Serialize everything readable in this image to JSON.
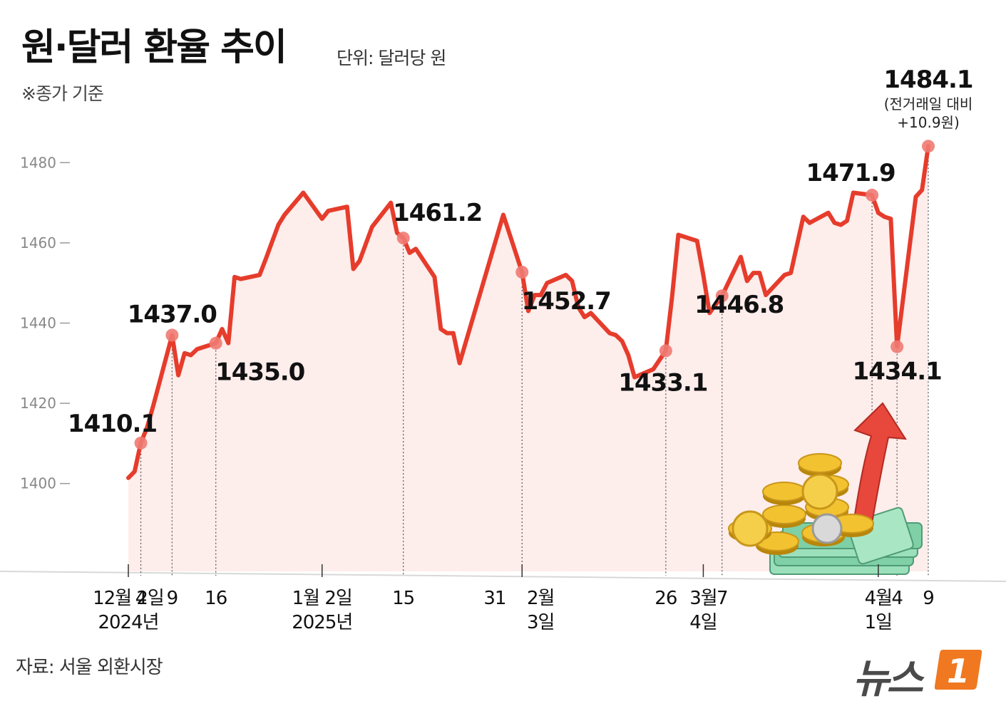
{
  "header": {
    "title": "원·달러 환율 추이",
    "unit": "단위: 달러당 원",
    "basis": "※종가 기준"
  },
  "footer": {
    "source": "자료: 서울 외환시장",
    "logo_text": "뉴스",
    "logo_mark": "1"
  },
  "colors": {
    "line": "#e63c2c",
    "marker": "#ef7a72",
    "area": "#fdeae8",
    "axis_text": "#888888",
    "label_text": "#111111",
    "logo": "#f07820"
  },
  "chart_data": {
    "type": "line",
    "ylim": [
      1390,
      1490
    ],
    "yticks": [
      1400,
      1420,
      1440,
      1460,
      1480
    ],
    "x_range": [
      "2024-12-02",
      "2025-04-09"
    ],
    "grid": false,
    "series": [
      {
        "values": [
          [
            "2024-12-02",
            1401.4
          ],
          [
            "2024-12-03",
            1403.0
          ],
          [
            "2024-12-04",
            1410.1
          ],
          [
            "2024-12-05",
            1414.0
          ],
          [
            "2024-12-06",
            1419.5
          ],
          [
            "2024-12-09",
            1437.0
          ],
          [
            "2024-12-10",
            1427.0
          ],
          [
            "2024-12-11",
            1432.5
          ],
          [
            "2024-12-12",
            1432.0
          ],
          [
            "2024-12-13",
            1433.5
          ],
          [
            "2024-12-16",
            1435.0
          ],
          [
            "2024-12-17",
            1438.5
          ],
          [
            "2024-12-18",
            1435.0
          ],
          [
            "2024-12-19",
            1451.5
          ],
          [
            "2024-12-20",
            1451.0
          ],
          [
            "2024-12-23",
            1452.0
          ],
          [
            "2024-12-24",
            1456.0
          ],
          [
            "2024-12-26",
            1464.5
          ],
          [
            "2024-12-27",
            1467.0
          ],
          [
            "2024-12-30",
            1472.5
          ],
          [
            "2025-01-02",
            1466.0
          ],
          [
            "2025-01-03",
            1468.0
          ],
          [
            "2025-01-06",
            1469.0
          ],
          [
            "2025-01-07",
            1453.5
          ],
          [
            "2025-01-08",
            1455.5
          ],
          [
            "2025-01-10",
            1464.0
          ],
          [
            "2025-01-13",
            1470.0
          ],
          [
            "2025-01-14",
            1462.5
          ],
          [
            "2025-01-15",
            1461.2
          ],
          [
            "2025-01-16",
            1457.5
          ],
          [
            "2025-01-17",
            1458.5
          ],
          [
            "2025-01-20",
            1451.5
          ],
          [
            "2025-01-21",
            1438.5
          ],
          [
            "2025-01-22",
            1437.5
          ],
          [
            "2025-01-23",
            1437.5
          ],
          [
            "2025-01-24",
            1430.0
          ],
          [
            "2025-01-31",
            1467.0
          ],
          [
            "2025-02-03",
            1452.7
          ],
          [
            "2025-02-04",
            1443.0
          ],
          [
            "2025-02-05",
            1447.0
          ],
          [
            "2025-02-06",
            1447.0
          ],
          [
            "2025-02-07",
            1450.0
          ],
          [
            "2025-02-10",
            1452.0
          ],
          [
            "2025-02-11",
            1450.5
          ],
          [
            "2025-02-12",
            1444.0
          ],
          [
            "2025-02-13",
            1441.5
          ],
          [
            "2025-02-14",
            1442.5
          ],
          [
            "2025-02-17",
            1437.5
          ],
          [
            "2025-02-18",
            1437.0
          ],
          [
            "2025-02-19",
            1435.5
          ],
          [
            "2025-02-20",
            1432.0
          ],
          [
            "2025-02-21",
            1426.5
          ],
          [
            "2025-02-24",
            1428.5
          ],
          [
            "2025-02-26",
            1433.1
          ],
          [
            "2025-02-27",
            1446.5
          ],
          [
            "2025-02-28",
            1462.0
          ],
          [
            "2025-03-03",
            1460.5
          ],
          [
            "2025-03-04",
            1452.0
          ],
          [
            "2025-03-05",
            1442.5
          ],
          [
            "2025-03-07",
            1446.8
          ],
          [
            "2025-03-10",
            1456.5
          ],
          [
            "2025-03-11",
            1450.5
          ],
          [
            "2025-03-12",
            1452.5
          ],
          [
            "2025-03-13",
            1452.5
          ],
          [
            "2025-03-14",
            1447.0
          ],
          [
            "2025-03-17",
            1452.0
          ],
          [
            "2025-03-18",
            1452.5
          ],
          [
            "2025-03-19",
            1459.5
          ],
          [
            "2025-03-20",
            1466.5
          ],
          [
            "2025-03-21",
            1465.0
          ],
          [
            "2025-03-24",
            1467.5
          ],
          [
            "2025-03-25",
            1465.0
          ],
          [
            "2025-03-26",
            1464.5
          ],
          [
            "2025-03-27",
            1465.5
          ],
          [
            "2025-03-28",
            1472.5
          ],
          [
            "2025-03-31",
            1471.9
          ],
          [
            "2025-04-01",
            1467.5
          ],
          [
            "2025-04-02",
            1466.5
          ],
          [
            "2025-04-03",
            1466.0
          ],
          [
            "2025-04-04",
            1434.1
          ],
          [
            "2025-04-07",
            1471.5
          ],
          [
            "2025-04-08",
            1473.2
          ],
          [
            "2025-04-09",
            1484.1
          ]
        ]
      }
    ],
    "highlights": [
      {
        "date": "2024-12-04",
        "value": 1410.1,
        "label": "1410.1",
        "anchor": "above"
      },
      {
        "date": "2024-12-09",
        "value": 1437.0,
        "label": "1437.0",
        "anchor": "above"
      },
      {
        "date": "2024-12-16",
        "value": 1435.0,
        "label": "1435.0",
        "anchor": "below-right"
      },
      {
        "date": "2025-01-15",
        "value": 1461.2,
        "label": "1461.2",
        "anchor": "above-right"
      },
      {
        "date": "2025-02-03",
        "value": 1452.7,
        "label": "1452.7",
        "anchor": "below-right"
      },
      {
        "date": "2025-02-26",
        "value": 1433.1,
        "label": "1433.1",
        "anchor": "below"
      },
      {
        "date": "2025-03-07",
        "value": 1446.8,
        "label": "1446.8",
        "anchor": "below"
      },
      {
        "date": "2025-03-31",
        "value": 1471.9,
        "label": "1471.9",
        "anchor": "above"
      },
      {
        "date": "2025-04-04",
        "value": 1434.1,
        "label": "1434.1",
        "anchor": "below"
      },
      {
        "date": "2025-04-09",
        "value": 1484.1,
        "label": "1484.1",
        "anchor": "top"
      }
    ],
    "last_note": [
      "(전거래일 대비",
      "+10.9원)"
    ],
    "x_tick_labels": [
      {
        "date": "2024-12-02",
        "lines": [
          "12월 2일",
          "2024년"
        ],
        "major": true
      },
      {
        "date": "2024-12-04",
        "lines": [
          "4"
        ],
        "major": false
      },
      {
        "date": "2024-12-09",
        "lines": [
          "9"
        ],
        "major": false
      },
      {
        "date": "2024-12-16",
        "lines": [
          "16"
        ],
        "major": false
      },
      {
        "date": "2025-01-02",
        "lines": [
          "1월 2일",
          "2025년"
        ],
        "major": true
      },
      {
        "date": "2025-01-15",
        "lines": [
          "15"
        ],
        "major": false
      },
      {
        "date": "2025-01-31",
        "lines": [
          "31"
        ],
        "major": false
      },
      {
        "date": "2025-02-03",
        "lines": [
          "2월",
          "3일"
        ],
        "major": true
      },
      {
        "date": "2025-02-26",
        "lines": [
          "26"
        ],
        "major": false
      },
      {
        "date": "2025-03-04",
        "lines": [
          "3월",
          "4일"
        ],
        "major": true
      },
      {
        "date": "2025-03-07",
        "lines": [
          "7"
        ],
        "major": false
      },
      {
        "date": "2025-04-01",
        "lines": [
          "4월",
          "1일"
        ],
        "major": true
      },
      {
        "date": "2025-04-04",
        "lines": [
          "4"
        ],
        "major": false
      },
      {
        "date": "2025-04-09",
        "lines": [
          "9"
        ],
        "major": false
      }
    ]
  }
}
